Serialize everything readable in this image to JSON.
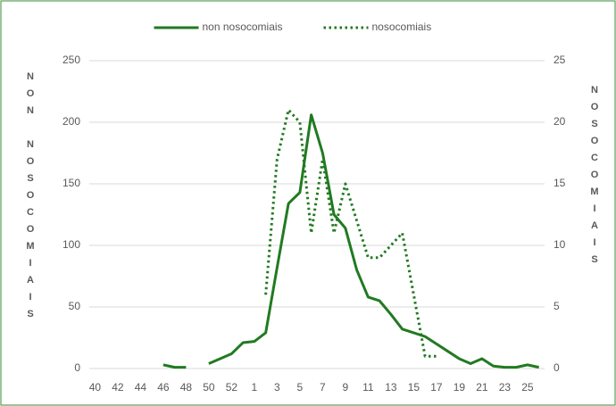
{
  "chart_data": {
    "type": "line",
    "y_label": "NON NOSOCOMIAIS",
    "y2_label": "NOSOCOMIAIS",
    "categories": [
      "40",
      null,
      "42",
      null,
      "44",
      null,
      "46",
      null,
      "48",
      null,
      "50",
      null,
      "52",
      null,
      "1",
      null,
      "3",
      null,
      "5",
      null,
      "7",
      null,
      "9",
      null,
      "11",
      null,
      "13",
      null,
      "15",
      null,
      "17",
      null,
      "19",
      null,
      "21",
      null,
      "23",
      null,
      "25",
      null
    ],
    "series": [
      {
        "name": "non nosocomiais",
        "color": "#217a21",
        "style": "solid",
        "values": [
          null,
          null,
          null,
          null,
          null,
          null,
          3,
          1,
          1,
          null,
          4,
          8,
          12,
          21,
          22,
          29,
          82,
          134,
          143,
          206,
          175,
          125,
          114,
          80,
          58,
          55,
          44,
          32,
          29,
          26,
          20,
          14,
          8,
          4,
          8,
          2,
          1,
          1,
          3,
          1
        ]
      },
      {
        "name": "nosocomiais",
        "color": "#217a21",
        "style": "dotted",
        "axis": "y2",
        "values": [
          null,
          null,
          null,
          null,
          null,
          null,
          null,
          null,
          null,
          null,
          null,
          null,
          null,
          null,
          null,
          6,
          17,
          21,
          20,
          11,
          17,
          11,
          15,
          12,
          9,
          9,
          10,
          11,
          6,
          1,
          1,
          null,
          null,
          null,
          null,
          null,
          null,
          null,
          null,
          null
        ]
      }
    ],
    "ylim": [
      0,
      250
    ],
    "yticks": [
      0,
      50,
      100,
      150,
      200,
      250
    ],
    "y2lim": [
      0,
      25
    ],
    "y2ticks": [
      0,
      5,
      10,
      15,
      20,
      25
    ],
    "grid": true,
    "legend": "top"
  }
}
